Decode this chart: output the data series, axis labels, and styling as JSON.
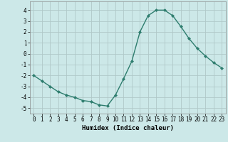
{
  "x": [
    0,
    1,
    2,
    3,
    4,
    5,
    6,
    7,
    8,
    9,
    10,
    11,
    12,
    13,
    14,
    15,
    16,
    17,
    18,
    19,
    20,
    21,
    22,
    23
  ],
  "y": [
    -2.0,
    -2.5,
    -3.0,
    -3.5,
    -3.8,
    -4.0,
    -4.3,
    -4.4,
    -4.7,
    -4.8,
    -3.8,
    -2.3,
    -0.7,
    2.0,
    3.5,
    4.0,
    4.0,
    3.5,
    2.5,
    1.4,
    0.5,
    -0.2,
    -0.8,
    -1.3
  ],
  "line_color": "#2e7d6e",
  "marker": "D",
  "markersize": 2.0,
  "linewidth": 1.0,
  "bg_color": "#cce8e8",
  "grid_color": "#b0c8c8",
  "xlabel": "Humidex (Indice chaleur)",
  "xlabel_fontsize": 6.5,
  "tick_fontsize": 5.5,
  "ylim": [
    -5.5,
    4.8
  ],
  "xlim": [
    -0.5,
    23.5
  ],
  "yticks": [
    -5,
    -4,
    -3,
    -2,
    -1,
    0,
    1,
    2,
    3,
    4
  ],
  "xticks": [
    0,
    1,
    2,
    3,
    4,
    5,
    6,
    7,
    8,
    9,
    10,
    11,
    12,
    13,
    14,
    15,
    16,
    17,
    18,
    19,
    20,
    21,
    22,
    23
  ]
}
